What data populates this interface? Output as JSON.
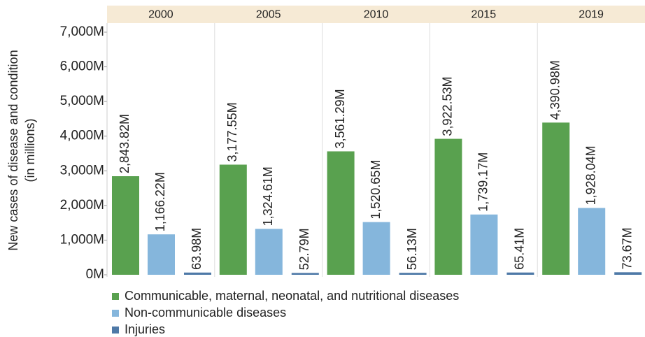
{
  "chart_data": {
    "type": "bar",
    "ylabel": [
      "New cases of disease and condition",
      "(in millions)"
    ],
    "categories": [
      "2000",
      "2005",
      "2010",
      "2015",
      "2019"
    ],
    "series": [
      {
        "name": "Communicable, maternal, neonatal, and nutritional diseases",
        "color": "#59a14f",
        "values": [
          2843.82,
          3177.55,
          3561.29,
          3922.53,
          4390.98
        ],
        "value_labels": [
          "2,843.82M",
          "3,177.55M",
          "3,561.29M",
          "3,922.53M",
          "4,390.98M"
        ]
      },
      {
        "name": "Non-communicable diseases",
        "color": "#85b6dc",
        "values": [
          1166.22,
          1324.61,
          1520.65,
          1739.17,
          1928.04
        ],
        "value_labels": [
          "1,166.22M",
          "1,324.61M",
          "1,520.65M",
          "1,739.17M",
          "1,928.04M"
        ]
      },
      {
        "name": "Injuries",
        "color": "#4e79a7",
        "values": [
          63.98,
          52.79,
          56.13,
          65.41,
          73.67
        ],
        "value_labels": [
          "63.98M",
          "52.79M",
          "56.13M",
          "65.41M",
          "73.67M"
        ]
      }
    ],
    "ylim": [
      0,
      7000
    ],
    "yticks": [
      {
        "value": 0,
        "label": "0M"
      },
      {
        "value": 1000,
        "label": "1,000M"
      },
      {
        "value": 2000,
        "label": "2,000M"
      },
      {
        "value": 3000,
        "label": "3,000M"
      },
      {
        "value": 4000,
        "label": "4,000M"
      },
      {
        "value": 5000,
        "label": "5,000M"
      },
      {
        "value": 6000,
        "label": "6,000M"
      },
      {
        "value": 7000,
        "label": "7,000M"
      }
    ],
    "legend": "bottom-left"
  }
}
